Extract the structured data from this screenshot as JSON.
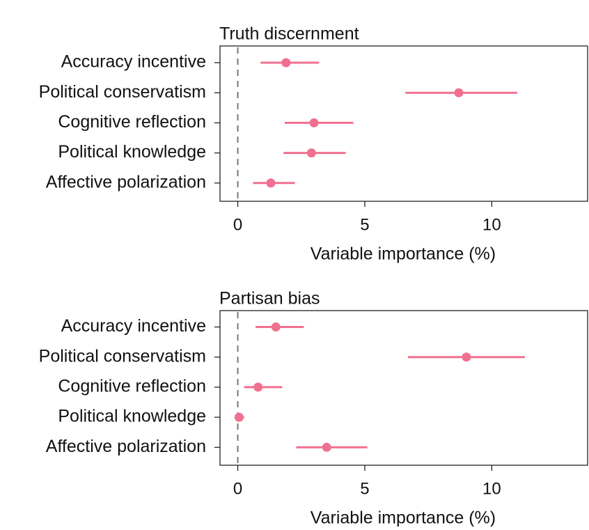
{
  "chart_data": [
    {
      "type": "scatter",
      "title": "Truth discernment",
      "xlabel": "Variable importance (%)",
      "ylabel": "",
      "xlim": [
        -0.7,
        13.8
      ],
      "xticks": [
        0,
        5,
        10
      ],
      "tick_labels": [
        "0",
        "5",
        "10"
      ],
      "reference_line": 0,
      "grid": false,
      "color": "#f0708f",
      "categories": [
        "Accuracy incentive",
        "Political conservatism",
        "Cognitive reflection",
        "Political knowledge",
        "Affective polarization"
      ],
      "points": [
        {
          "category": "Accuracy incentive",
          "value": 1.9,
          "low": 0.9,
          "high": 3.2
        },
        {
          "category": "Political conservatism",
          "value": 8.7,
          "low": 6.6,
          "high": 11.0
        },
        {
          "category": "Cognitive reflection",
          "value": 3.0,
          "low": 1.85,
          "high": 4.55
        },
        {
          "category": "Political knowledge",
          "value": 2.9,
          "low": 1.8,
          "high": 4.25
        },
        {
          "category": "Affective polarization",
          "value": 1.3,
          "low": 0.6,
          "high": 2.25
        }
      ]
    },
    {
      "type": "scatter",
      "title": "Partisan bias",
      "xlabel": "Variable importance (%)",
      "ylabel": "",
      "xlim": [
        -0.7,
        13.8
      ],
      "xticks": [
        0,
        5,
        10
      ],
      "tick_labels": [
        "0",
        "5",
        "10"
      ],
      "reference_line": 0,
      "grid": false,
      "color": "#f0708f",
      "categories": [
        "Accuracy incentive",
        "Political conservatism",
        "Cognitive reflection",
        "Political knowledge",
        "Affective polarization"
      ],
      "points": [
        {
          "category": "Accuracy incentive",
          "value": 1.5,
          "low": 0.7,
          "high": 2.6
        },
        {
          "category": "Political conservatism",
          "value": 9.0,
          "low": 6.7,
          "high": 11.3
        },
        {
          "category": "Cognitive reflection",
          "value": 0.8,
          "low": 0.25,
          "high": 1.75
        },
        {
          "category": "Political knowledge",
          "value": 0.05,
          "low": -0.1,
          "high": 0.25
        },
        {
          "category": "Affective polarization",
          "value": 3.5,
          "low": 2.3,
          "high": 5.1
        }
      ]
    }
  ]
}
